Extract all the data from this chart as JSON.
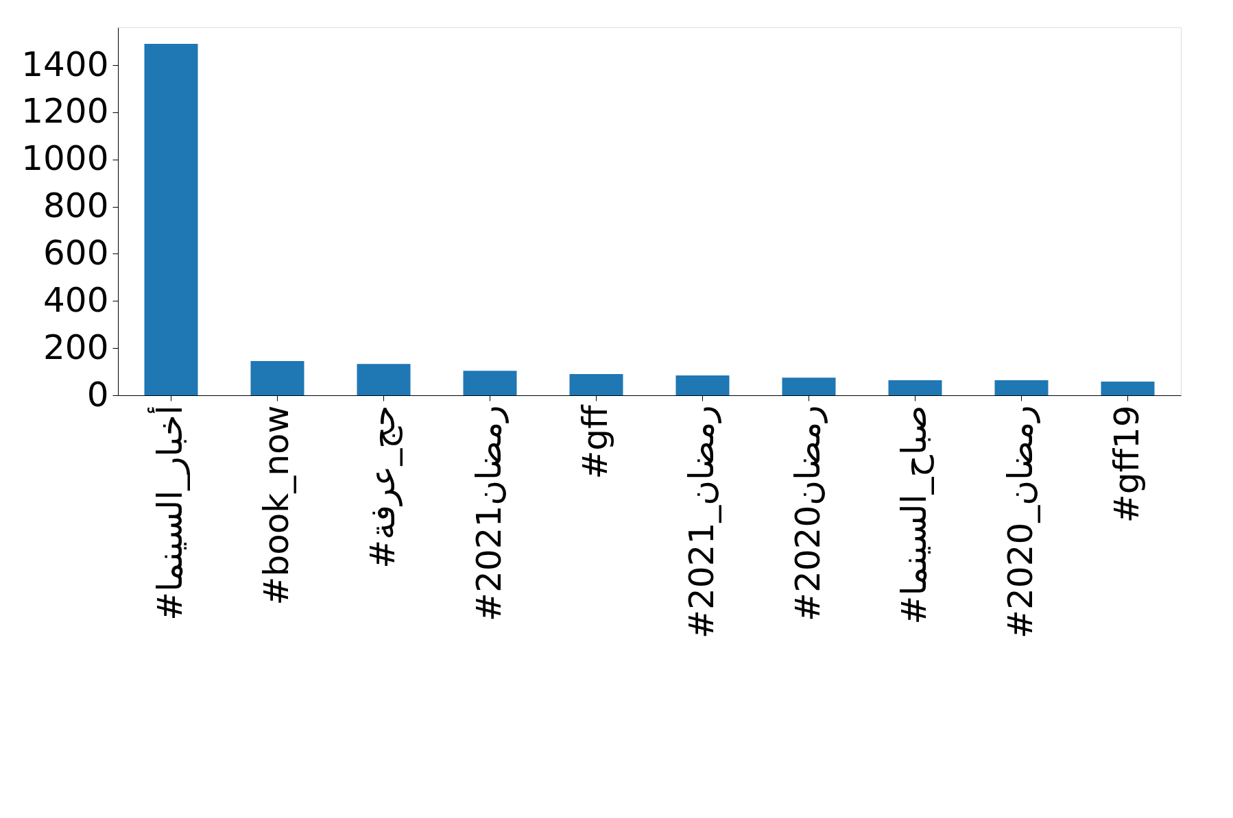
{
  "chart_data": {
    "type": "bar",
    "categories": [
      "#أخبار_السينما",
      "#book_now",
      "#حج_عرفة",
      "#رمضان2021",
      "#gff",
      "#رمضان_2021",
      "#رمضان2020",
      "#صباح_السينما",
      "#رمضان_2020",
      "#gff19"
    ],
    "values": [
      1490,
      145,
      133,
      104,
      90,
      84,
      75,
      64,
      64,
      58
    ],
    "color": "#1f77b4",
    "ylim": [
      0,
      1560
    ],
    "yticks": [
      0,
      200,
      400,
      600,
      800,
      1000,
      1200,
      1400
    ],
    "grid": false
  }
}
